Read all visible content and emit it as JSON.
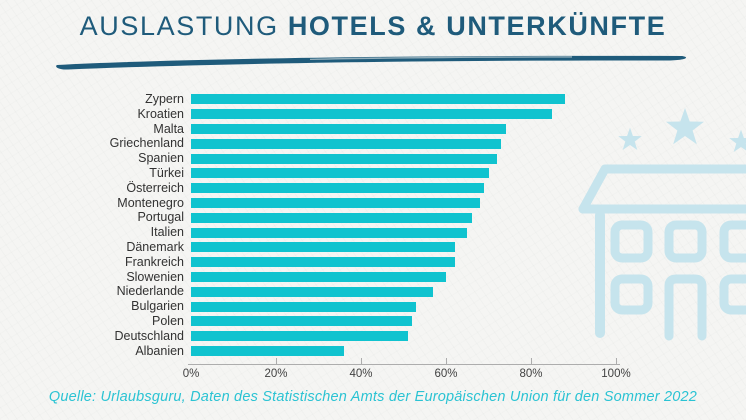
{
  "title": {
    "regular": "AUSLASTUNG",
    "bold": "HOTELS & UNTERKÜNFTE"
  },
  "caption": "Quelle: Urlaubsguru, Daten des Statistischen Amts der Europäischen Union für den Sommer 2022",
  "colors": {
    "bar": "#10c3cf",
    "title": "#1f5b7b",
    "caption": "#2bc3d3",
    "label_text": "#323232",
    "axis": "#adadad",
    "illustration": "#c6e4ed",
    "background": "#f5f5f3"
  },
  "decorations": {
    "underline": "brush-stroke-underline",
    "icons": [
      "star-icon",
      "star-icon",
      "star-icon",
      "hotel-building-icon"
    ]
  },
  "chart_data": {
    "type": "bar",
    "orientation": "horizontal",
    "title": "AUSLASTUNG HOTELS & UNTERKÜNFTE",
    "categories": [
      "Zypern",
      "Kroatien",
      "Malta",
      "Griechenland",
      "Spanien",
      "Türkei",
      "Österreich",
      "Montenegro",
      "Portugal",
      "Italien",
      "Dänemark",
      "Frankreich",
      "Slowenien",
      "Niederlande",
      "Bulgarien",
      "Polen",
      "Deutschland",
      "Albanien"
    ],
    "values": [
      88,
      85,
      74,
      73,
      72,
      70,
      69,
      68,
      66,
      65,
      62,
      62,
      60,
      57,
      53,
      52,
      51,
      36
    ],
    "unit": "%",
    "xlabel": "",
    "ylabel": "",
    "xlim": [
      0,
      100
    ],
    "x_ticks": [
      "0%",
      "20%",
      "40%",
      "60%",
      "80%",
      "100%"
    ],
    "grid": false,
    "legend": null,
    "source": "Quelle: Urlaubsguru, Daten des Statistischen Amts der Europäischen Union für den Sommer 2022"
  }
}
